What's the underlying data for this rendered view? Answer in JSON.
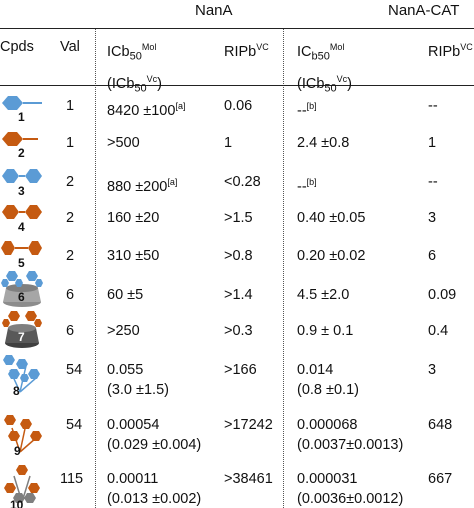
{
  "groups": {
    "nana": "NanA",
    "nana_cat": "NanA-CAT"
  },
  "headers": {
    "cpds": "Cpds",
    "val": "Val",
    "ic_pre": "ICb",
    "ic_sub": "50",
    "ic_sup": "Mol",
    "ic_vc_open": "(ICb",
    "ic_vc_sub": "50",
    "ic_vc_sup": "Vc",
    "ic_vc_close": ")",
    "rip_pre": "RIPb",
    "rip_sup": "VC",
    "ic2_pre": "IC",
    "ic2_sub": "b50",
    "ic2_sup": "Mol",
    "rip2_pre": "RIPb",
    "rip2_sup": "VC"
  },
  "rows": [
    {
      "cpd": "1",
      "val": "1",
      "ic": "8420 ±100",
      "ic_note": "[a]",
      "rip": "0.06",
      "ic2": "--",
      "ic2_note": "[b]",
      "rip2": "--"
    },
    {
      "cpd": "2",
      "val": "1",
      "ic": ">500",
      "rip": "1",
      "ic2": "2.4 ±0.8",
      "rip2": "1"
    },
    {
      "cpd": "3",
      "val": "2",
      "ic": "880 ±200",
      "ic_note": "[a]",
      "rip": "<0.28",
      "ic2": "--",
      "ic2_note": "[b]",
      "rip2": "--"
    },
    {
      "cpd": "4",
      "val": "2",
      "ic": "160 ±20",
      "rip": ">1.5",
      "ic2": "0.40 ±0.05",
      "rip2": "3"
    },
    {
      "cpd": "5",
      "val": "2",
      "ic": "310 ±50",
      "rip": ">0.8",
      "ic2": "0.20 ±0.02",
      "rip2": "6"
    },
    {
      "cpd": "6",
      "val": "6",
      "ic": "60 ±5",
      "rip": ">1.4",
      "ic2": "4.5 ±2.0",
      "rip2": "0.09"
    },
    {
      "cpd": "7",
      "val": "6",
      "ic": ">250",
      "rip": ">0.3",
      "ic2": "0.9 ± 0.1",
      "rip2": "0.4"
    },
    {
      "cpd": "8",
      "val": "54",
      "ic": "0.055",
      "ic_b": "(3.0 ±1.5)",
      "rip": ">166",
      "ic2": "0.014",
      "ic2_b": "(0.8 ±0.1)",
      "rip2": "3"
    },
    {
      "cpd": "9",
      "val": "54",
      "ic": "0.00054",
      "ic_b": "(0.029 ±0.004)",
      "rip": ">17242",
      "ic2": "0.000068",
      "ic2_b": "(0.0037±0.0013)",
      "rip2": "648"
    },
    {
      "cpd": "10",
      "val": "115",
      "ic": "0.00011",
      "ic_b": "(0.013 ±0.002)",
      "rip": ">38461",
      "ic2": "0.000031",
      "ic2_b": "(0.0036±0.0012)",
      "rip2": "667"
    }
  ],
  "colors": {
    "blue": "#5b9bd5",
    "orange": "#c55a11",
    "gray": "#7f7f7f"
  }
}
